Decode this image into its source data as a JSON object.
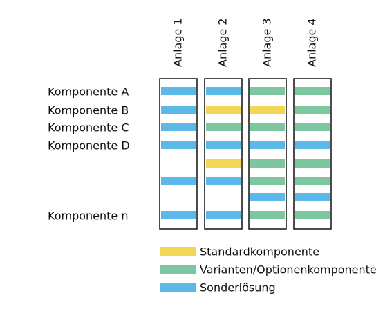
{
  "columns": [
    "Anlage 1",
    "Anlage 2",
    "Anlage 3",
    "Anlage 4"
  ],
  "rows": [
    {
      "label": "Komponente A"
    },
    {
      "label": "Komponente B"
    },
    {
      "label": "Komponente C"
    },
    {
      "label": "Komponente D"
    },
    {},
    {},
    {},
    {
      "label": "Komponente n"
    }
  ],
  "legend": [
    {
      "label": "Standardkomponente",
      "color": "#f1d657"
    },
    {
      "label": "Varianten/Optionenkomponente",
      "color": "#7cc6a0"
    },
    {
      "label": "Sonderlösung",
      "color": "#5cb8e6"
    }
  ],
  "grid": [
    [
      2,
      2,
      2,
      2,
      null,
      2,
      null,
      2
    ],
    [
      2,
      0,
      1,
      2,
      0,
      2,
      null,
      2
    ],
    [
      1,
      0,
      1,
      2,
      1,
      1,
      2,
      1
    ],
    [
      1,
      1,
      1,
      2,
      1,
      1,
      2,
      1
    ]
  ]
}
